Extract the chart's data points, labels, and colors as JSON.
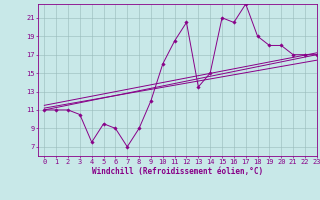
{
  "x_data": [
    0,
    1,
    2,
    3,
    4,
    5,
    6,
    7,
    8,
    9,
    10,
    11,
    12,
    13,
    14,
    15,
    16,
    17,
    18,
    19,
    20,
    21,
    22,
    23
  ],
  "windchill": [
    11,
    11,
    11,
    10.5,
    7.5,
    9.5,
    9,
    7,
    9,
    12,
    16,
    18.5,
    20.5,
    13.5,
    15,
    21,
    20.5,
    22.5,
    19,
    18,
    18,
    17,
    17,
    17
  ],
  "trend1_x": [
    0,
    23
  ],
  "trend1_y": [
    11,
    17
  ],
  "trend2_x": [
    0,
    23
  ],
  "trend2_y": [
    11.5,
    17.2
  ],
  "trend3_x": [
    0,
    23
  ],
  "trend3_y": [
    11.2,
    16.4
  ],
  "ylim_min": 6,
  "ylim_max": 22.5,
  "xlim_min": -0.5,
  "xlim_max": 23,
  "yticks": [
    7,
    9,
    11,
    13,
    15,
    17,
    19,
    21
  ],
  "xticks": [
    0,
    1,
    2,
    3,
    4,
    5,
    6,
    7,
    8,
    9,
    10,
    11,
    12,
    13,
    14,
    15,
    16,
    17,
    18,
    19,
    20,
    21,
    22,
    23
  ],
  "xlabel": "Windchill (Refroidissement éolien,°C)",
  "line_color": "#880088",
  "bg_color": "#c8e8e8",
  "grid_color": "#99bbbb",
  "spine_color": "#880088",
  "tick_color": "#880088",
  "label_color": "#880088",
  "marker": "D",
  "markersize": 1.8,
  "linewidth": 0.7,
  "tick_fontsize": 5.0,
  "label_fontsize": 5.5
}
